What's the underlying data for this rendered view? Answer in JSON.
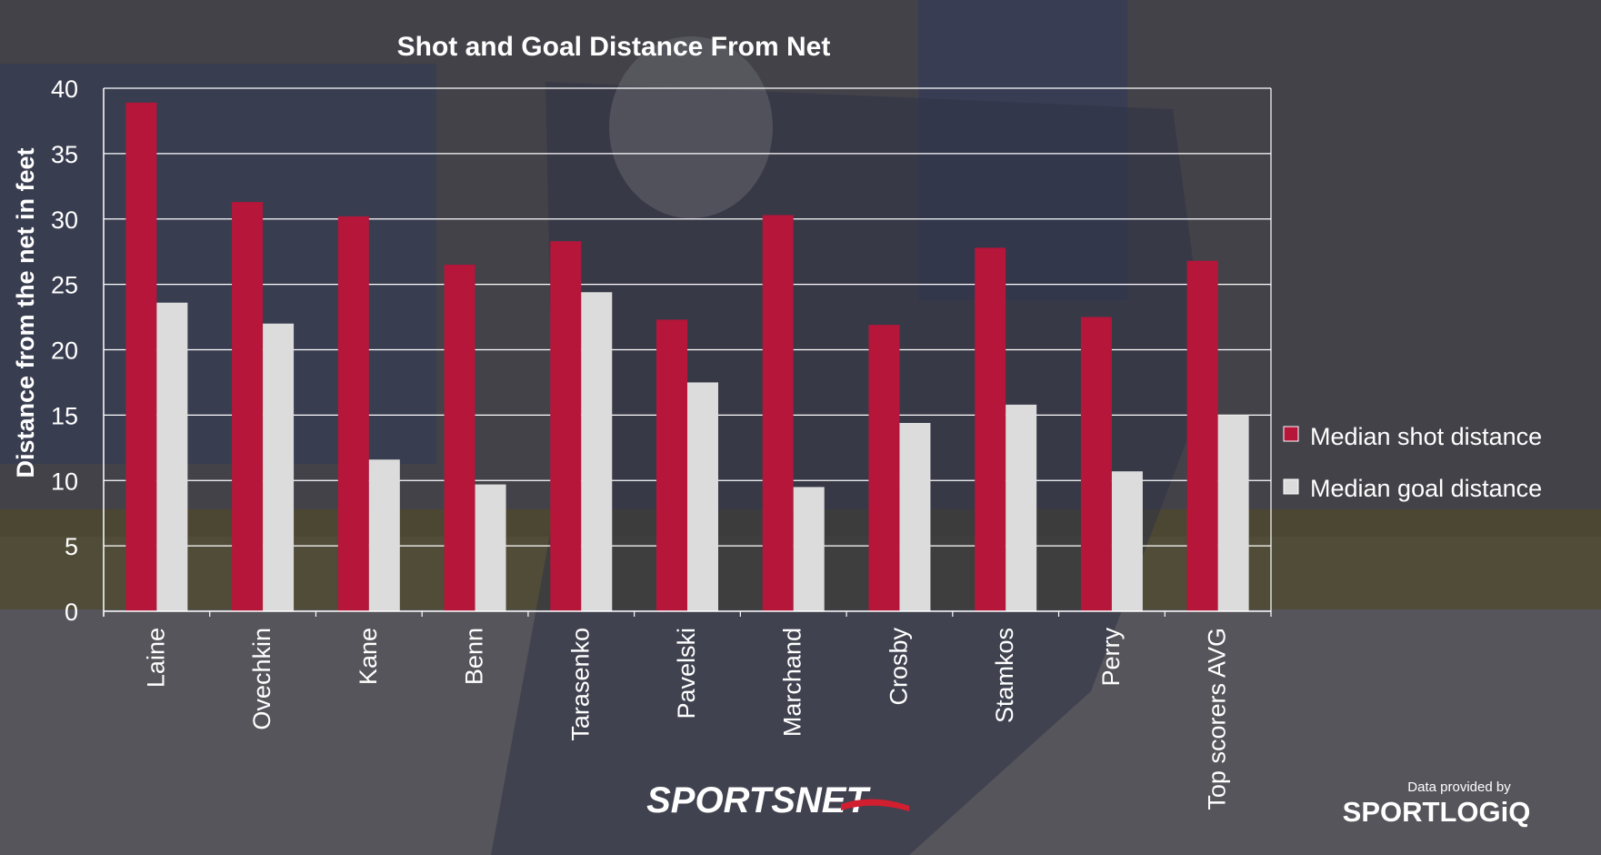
{
  "chart_data": {
    "type": "bar",
    "title": "Shot and Goal Distance From Net",
    "xlabel": "",
    "ylabel": "Distance from the net in feet",
    "ylim": [
      0,
      40
    ],
    "yticks": [
      0,
      5,
      10,
      15,
      20,
      25,
      30,
      35,
      40
    ],
    "grid": true,
    "legend_position": "right",
    "categories": [
      "Laine",
      "Ovechkin",
      "Kane",
      "Benn",
      "Tarasenko",
      "Pavelski",
      "Marchand",
      "Crosby",
      "Stamkos",
      "Perry",
      "Top scorers AVG"
    ],
    "series": [
      {
        "name": "Median shot distance",
        "color": "#b5163a",
        "values": [
          38.9,
          31.3,
          30.2,
          26.5,
          28.3,
          22.3,
          30.3,
          21.9,
          27.8,
          22.5,
          26.8
        ]
      },
      {
        "name": "Median goal distance",
        "color": "#dcdcdc",
        "values": [
          23.6,
          22.0,
          11.6,
          9.7,
          24.4,
          17.5,
          9.5,
          14.4,
          15.8,
          10.7,
          15.0
        ]
      }
    ]
  },
  "branding": {
    "broadcaster_logo": "SPORTSNET",
    "credit_text": "Data provided by",
    "provider_logo": "SPORTLOGiQ"
  }
}
